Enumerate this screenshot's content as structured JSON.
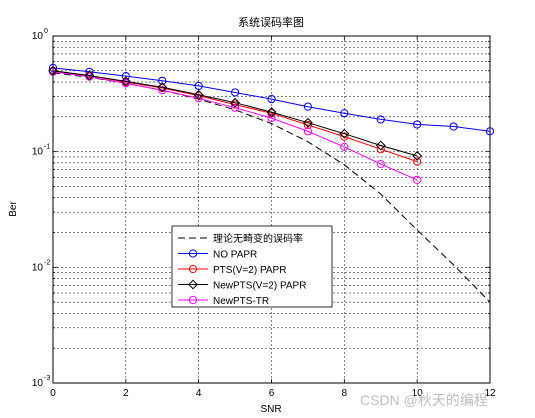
{
  "chart_data": {
    "type": "line",
    "title": "系统误码率图",
    "xlabel": "SNR",
    "ylabel": "Ber",
    "x_scale": "linear",
    "y_scale": "log",
    "xlim": [
      0,
      12
    ],
    "ylim": [
      0.001,
      1
    ],
    "x_ticks": [
      "0",
      "2",
      "4",
      "6",
      "8",
      "10",
      "12"
    ],
    "y_ticks": [
      {
        "base": "10",
        "exp": "0",
        "value": 1
      },
      {
        "base": "10",
        "exp": "-1",
        "value": 0.1
      },
      {
        "base": "10",
        "exp": "-2",
        "value": 0.01
      },
      {
        "base": "10",
        "exp": "-3",
        "value": 0.001
      }
    ],
    "grid": "dashed, major and minor",
    "legend_position": "lower-left",
    "series": [
      {
        "name": "理论无畸变的误码率",
        "color": "#000000",
        "line": "dashed",
        "marker": "none",
        "x": [
          0,
          1,
          2,
          3,
          4,
          5,
          6,
          7,
          8,
          9,
          10,
          11,
          12
        ],
        "y": [
          0.48,
          0.44,
          0.39,
          0.34,
          0.285,
          0.23,
          0.175,
          0.122,
          0.077,
          0.043,
          0.021,
          0.0105,
          0.005
        ]
      },
      {
        "name": "NO PAPR",
        "color": "#0000ff",
        "line": "solid",
        "marker": "circle",
        "x": [
          0,
          1,
          2,
          3,
          4,
          5,
          6,
          7,
          8,
          9,
          10,
          11,
          12
        ],
        "y": [
          0.53,
          0.49,
          0.45,
          0.41,
          0.37,
          0.325,
          0.285,
          0.245,
          0.215,
          0.19,
          0.172,
          0.165,
          0.15
        ]
      },
      {
        "name": "PTS(V=2) PAPR",
        "color": "#ff0000",
        "line": "solid",
        "marker": "circle",
        "x": [
          0,
          1,
          2,
          3,
          4,
          5,
          6,
          7,
          8,
          9,
          10
        ],
        "y": [
          0.5,
          0.455,
          0.4,
          0.355,
          0.305,
          0.255,
          0.215,
          0.17,
          0.135,
          0.105,
          0.082
        ]
      },
      {
        "name": "NewPTS(V=2) PAPR",
        "color": "#000000",
        "line": "solid",
        "marker": "diamond",
        "x": [
          0,
          1,
          2,
          3,
          4,
          5,
          6,
          7,
          8,
          9,
          10
        ],
        "y": [
          0.5,
          0.455,
          0.405,
          0.36,
          0.31,
          0.265,
          0.22,
          0.178,
          0.143,
          0.113,
          0.092
        ]
      },
      {
        "name": "NewPTS-TR",
        "color": "#ff00ff",
        "line": "solid",
        "marker": "circle",
        "x": [
          0,
          1,
          2,
          3,
          4,
          5,
          6,
          7,
          8,
          9,
          10
        ],
        "y": [
          0.49,
          0.445,
          0.39,
          0.34,
          0.29,
          0.24,
          0.195,
          0.15,
          0.11,
          0.078,
          0.057
        ]
      }
    ]
  },
  "watermark": "CSDN @秋天的编程"
}
